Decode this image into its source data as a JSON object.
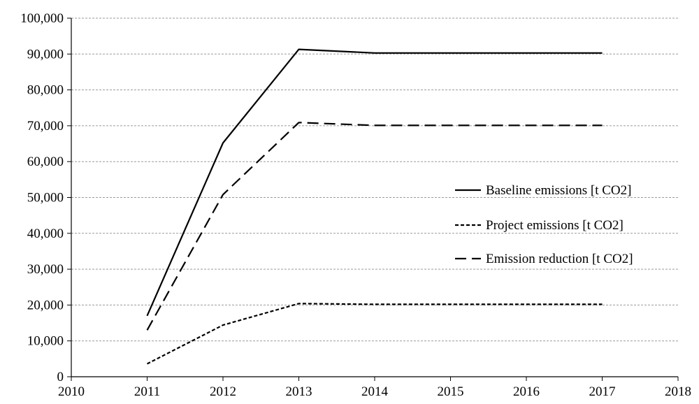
{
  "chart_data": {
    "type": "line",
    "title": "",
    "xlabel": "",
    "ylabel": "",
    "xlim": [
      2010,
      2018
    ],
    "ylim": [
      0,
      100000
    ],
    "x_ticks": [
      "2010",
      "2011",
      "2012",
      "2013",
      "2014",
      "2015",
      "2016",
      "2017",
      "2018"
    ],
    "y_ticks": [
      "0",
      "10,000",
      "20,000",
      "30,000",
      "40,000",
      "50,000",
      "60,000",
      "70,000",
      "80,000",
      "90,000",
      "100,000"
    ],
    "grid": "horizontal, dashed",
    "legend_position": "right",
    "x": [
      2011,
      2012,
      2013,
      2014,
      2015,
      2016,
      2017
    ],
    "series": [
      {
        "name": "Baseline emissions [t CO2]",
        "style": "solid",
        "color": "#000000",
        "values": [
          17000,
          65200,
          91300,
          90300,
          90300,
          90300,
          90300
        ]
      },
      {
        "name": "Project emissions [t CO2]",
        "style": "dotted",
        "color": "#000000",
        "values": [
          3600,
          14400,
          20400,
          20200,
          20200,
          20200,
          20200
        ]
      },
      {
        "name": "Emission reduction [t CO2]",
        "style": "dashed",
        "color": "#000000",
        "values": [
          13000,
          50800,
          70900,
          70100,
          70100,
          70100,
          70100
        ]
      }
    ]
  }
}
